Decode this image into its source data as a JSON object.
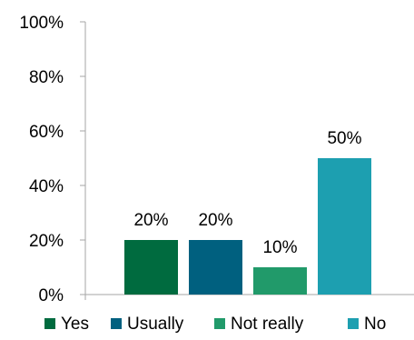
{
  "chart_data": {
    "type": "bar",
    "categories": [
      "Yes",
      "Usually",
      "Not really",
      "No"
    ],
    "values": [
      20,
      20,
      10,
      50
    ],
    "data_labels": [
      "20%",
      "20%",
      "10%",
      "50%"
    ],
    "ylim": [
      0,
      100
    ],
    "y_ticks": [
      0,
      20,
      40,
      60,
      80,
      100
    ],
    "y_tick_labels": [
      "0%",
      "20%",
      "40%",
      "60%",
      "80%",
      "100%"
    ],
    "colors": [
      "#006b3f",
      "#00607f",
      "#219a6a",
      "#1d9fb0"
    ],
    "grid": false,
    "legend_position": "bottom"
  }
}
